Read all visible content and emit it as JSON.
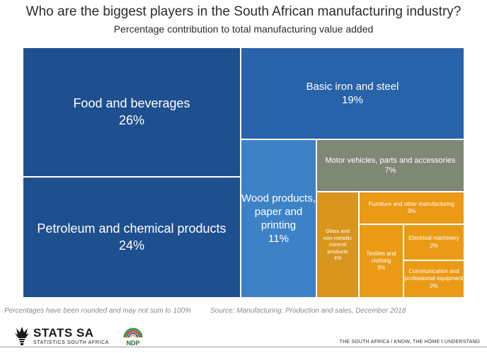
{
  "chart_data": {
    "type": "treemap",
    "title": "Who are the biggest players in the South African manufacturing industry?",
    "subtitle": "Percentage contribution to total manufacturing value added",
    "items": [
      {
        "label": "Food and beverages",
        "value": 26,
        "value_label": "26%",
        "color": "#1e4f8f"
      },
      {
        "label": "Petroleum and chemical products",
        "value": 24,
        "value_label": "24%",
        "color": "#1e4f8f"
      },
      {
        "label": "Basic iron and steel",
        "value": 19,
        "value_label": "19%",
        "color": "#2862a8"
      },
      {
        "label": "Wood products, paper and printing",
        "value": 11,
        "value_label": "11%",
        "color": "#3d82c6"
      },
      {
        "label": "Motor vehicles, parts and accessories",
        "value": 7,
        "value_label": "7%",
        "color": "#7f8776"
      },
      {
        "label": "Glass and non-metallic mineral products",
        "value": 4,
        "value_label": "4%",
        "color": "#d9961e"
      },
      {
        "label": "Furniture and other manufacturing",
        "value": 3,
        "value_label": "3%",
        "color": "#eb9a16"
      },
      {
        "label": "Textiles and clothing",
        "value": 3,
        "value_label": "3%",
        "color": "#eb9a16"
      },
      {
        "label": "Electrical machinery",
        "value": 2,
        "value_label": "2%",
        "color": "#eb9a16"
      },
      {
        "label": "Communication and professional equipment",
        "value": 2,
        "value_label": "2%",
        "color": "#eb9a16"
      }
    ]
  },
  "footer": {
    "note": "Percentages have been rounded and may not sum to 100%",
    "source": "Source: Manufacturing: Production and sales, December 2018",
    "brand_name": "STATS SA",
    "brand_sub": "STATISTICS SOUTH AFRICA",
    "ndp_label": "NDP",
    "tagline": "THE SOUTH AFRICA I KNOW, THE HOME I UNDERSTAND"
  },
  "colors": {
    "rule": "#9aa0a6",
    "ndp_text": "#2a6a35",
    "ndp_arcs": [
      "#2a9d4a",
      "#e0342b",
      "#1d5ca8",
      "#f2b321"
    ]
  },
  "icons": [
    "stats-sa-mark-icon",
    "ndp-logo-icon"
  ]
}
